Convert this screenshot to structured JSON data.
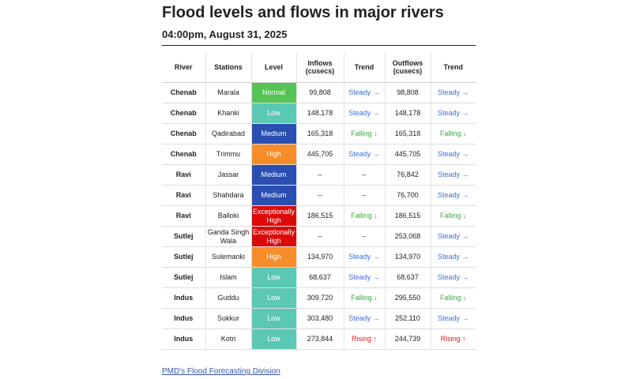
{
  "header": {
    "title": "Flood levels and flows in major rivers",
    "subtitle": "04:00pm, August 31, 2025"
  },
  "table": {
    "columns": [
      "River",
      "Stations",
      "Level",
      "Inflows\n(cusecs)",
      "Trend",
      "Outflows\n(cusecs)",
      "Trend"
    ],
    "rows": [
      [
        "Chenab",
        "Marala",
        "Normal",
        "99,808",
        "Steady →",
        "98,808",
        "Steady →"
      ],
      [
        "Chenab",
        "Khanki",
        "Low",
        "148,178",
        "Steady →",
        "148,178",
        "Steady →"
      ],
      [
        "Chenab",
        "Qadirabad",
        "Medium",
        "165,318",
        "Falling ↓",
        "165,318",
        "Falling ↓"
      ],
      [
        "Chenab",
        "Trimmu",
        "High",
        "445,705",
        "Steady →",
        "445,705",
        "Steady →"
      ],
      [
        "Ravi",
        "Jassar",
        "Medium",
        "–",
        "–",
        "76,842",
        "Steady →"
      ],
      [
        "Ravi",
        "Shahdara",
        "Medium",
        "–",
        "–",
        "76,700",
        "Steady →"
      ],
      [
        "Ravi",
        "Balloki",
        "Exceptionally High",
        "186,515",
        "Falling ↓",
        "186,515",
        "Falling ↓"
      ],
      [
        "Sutlej",
        "Ganda Singh Wala",
        "Exceptionally High",
        "–",
        "–",
        "253,068",
        "Steady →"
      ],
      [
        "Sutlej",
        "Sulemanki",
        "High",
        "134,970",
        "Steady →",
        "134,970",
        "Steady →"
      ],
      [
        "Sutlej",
        "Islam",
        "Low",
        "68,637",
        "Steady →",
        "68,637",
        "Steady →"
      ],
      [
        "Indus",
        "Guddu",
        "Low",
        "309,720",
        "Falling ↓",
        "295,550",
        "Falling ↓"
      ],
      [
        "Indus",
        "Sukkur",
        "Low",
        "303,480",
        "Steady →",
        "252,110",
        "Steady →"
      ],
      [
        "Indus",
        "Kotri",
        "Low",
        "273,844",
        "Rising ↑",
        "244,739",
        "Rising ↑"
      ]
    ],
    "level_colors": {
      "Normal": "#55c455",
      "Low": "#5bc8b4",
      "Medium": "#2a4fb0",
      "High": "#f78d2a",
      "Exceptionally High": "#dd0a0a"
    },
    "trend_colors": {
      "Steady →": "#3a6fd8",
      "Falling ↓": "#3aaa3a",
      "Rising ↑": "#d81c1c",
      "–": "#333333"
    }
  },
  "footer": {
    "link": "PMD's Flood Forecasting Division"
  }
}
